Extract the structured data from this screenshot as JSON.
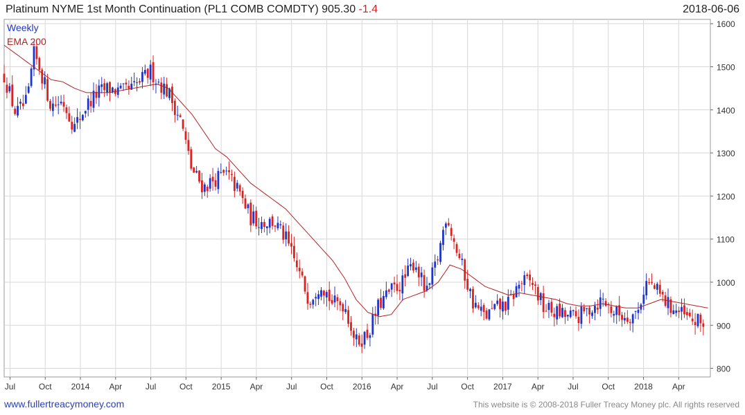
{
  "header": {
    "title": "Platinum NYME 1st Month Continuation (PL1 COMB COMDTY)",
    "last_price": "905.30",
    "change": "-1.4",
    "date": "2018-06-06"
  },
  "footer": {
    "site": "www.fullertreacymoney.com",
    "copyright": "This website is © 2008-2018 Fuller Treacy Money plc. All rights reserved"
  },
  "colors": {
    "up": "#1f35c8",
    "down": "#dd2020",
    "ema": "#b22222",
    "grid": "#d8d8d8"
  },
  "chart_data": {
    "type": "candlestick",
    "legend": [
      "Weekly",
      "EMA 200"
    ],
    "y_axis": {
      "min": 780,
      "max": 1610,
      "ticks": [
        800,
        900,
        1000,
        1100,
        1200,
        1300,
        1400,
        1500,
        1600
      ],
      "side": "right"
    },
    "x_ticks": [
      {
        "label": "Jul",
        "m": 0.5
      },
      {
        "label": "Oct",
        "m": 3.5
      },
      {
        "label": "2014",
        "m": 6.5
      },
      {
        "label": "Apr",
        "m": 9.5
      },
      {
        "label": "Jul",
        "m": 12.5
      },
      {
        "label": "Oct",
        "m": 15.5
      },
      {
        "label": "2015",
        "m": 18.5
      },
      {
        "label": "Apr",
        "m": 21.5
      },
      {
        "label": "Jul",
        "m": 24.5
      },
      {
        "label": "Oct",
        "m": 27.5
      },
      {
        "label": "2016",
        "m": 30.5
      },
      {
        "label": "Apr",
        "m": 33.5
      },
      {
        "label": "Jul",
        "m": 36.5
      },
      {
        "label": "Oct",
        "m": 39.5
      },
      {
        "label": "2017",
        "m": 42.5
      },
      {
        "label": "Apr",
        "m": 45.5
      },
      {
        "label": "Jul",
        "m": 48.5
      },
      {
        "label": "Oct",
        "m": 51.5
      },
      {
        "label": "2018",
        "m": 54.5
      },
      {
        "label": "Apr",
        "m": 57.5
      }
    ],
    "x_range_months": [
      0,
      60.2
    ],
    "weekly_close_anchors": [
      [
        0,
        1480
      ],
      [
        1,
        1390
      ],
      [
        2,
        1420
      ],
      [
        2.5,
        1530
      ],
      [
        3,
        1500
      ],
      [
        4,
        1410
      ],
      [
        5,
        1420
      ],
      [
        6,
        1360
      ],
      [
        7,
        1410
      ],
      [
        8,
        1440
      ],
      [
        9,
        1450
      ],
      [
        10,
        1440
      ],
      [
        11,
        1450
      ],
      [
        12.5,
        1490
      ],
      [
        13,
        1470
      ],
      [
        14,
        1440
      ],
      [
        15,
        1380
      ],
      [
        16,
        1260
      ],
      [
        17,
        1220
      ],
      [
        18,
        1240
      ],
      [
        19,
        1250
      ],
      [
        20,
        1210
      ],
      [
        21,
        1150
      ],
      [
        22,
        1140
      ],
      [
        23,
        1140
      ],
      [
        24,
        1100
      ],
      [
        25,
        1030
      ],
      [
        26,
        960
      ],
      [
        27,
        1000
      ],
      [
        28,
        950
      ],
      [
        29,
        950
      ],
      [
        30,
        860
      ],
      [
        31,
        880
      ],
      [
        32,
        950
      ],
      [
        33,
        980
      ],
      [
        34,
        1000
      ],
      [
        35,
        1050
      ],
      [
        36,
        970
      ],
      [
        37,
        1060
      ],
      [
        37.7,
        1160
      ],
      [
        38.5,
        1080
      ],
      [
        39,
        1040
      ],
      [
        40,
        950
      ],
      [
        41,
        920
      ],
      [
        42,
        940
      ],
      [
        43,
        950
      ],
      [
        44,
        1000
      ],
      [
        45,
        1000
      ],
      [
        46,
        940
      ],
      [
        47,
        930
      ],
      [
        48,
        920
      ],
      [
        49,
        920
      ],
      [
        50,
        940
      ],
      [
        51,
        960
      ],
      [
        52,
        930
      ],
      [
        53,
        920
      ],
      [
        54,
        930
      ],
      [
        54.7,
        1000
      ],
      [
        55.3,
        990
      ],
      [
        56.5,
        950
      ],
      [
        57.5,
        930
      ],
      [
        58.5,
        910
      ],
      [
        59.6,
        905
      ]
    ],
    "ema200_anchors": [
      [
        0,
        1550
      ],
      [
        1,
        1530
      ],
      [
        2,
        1510
      ],
      [
        3,
        1490
      ],
      [
        4,
        1470
      ],
      [
        5,
        1465
      ],
      [
        6,
        1450
      ],
      [
        7,
        1440
      ],
      [
        8,
        1440
      ],
      [
        9,
        1440
      ],
      [
        10,
        1445
      ],
      [
        11,
        1450
      ],
      [
        12,
        1455
      ],
      [
        13,
        1460
      ],
      [
        14,
        1450
      ],
      [
        15,
        1420
      ],
      [
        16,
        1390
      ],
      [
        17,
        1350
      ],
      [
        18,
        1310
      ],
      [
        19,
        1290
      ],
      [
        20,
        1260
      ],
      [
        21,
        1230
      ],
      [
        22,
        1210
      ],
      [
        23,
        1190
      ],
      [
        24,
        1170
      ],
      [
        25,
        1140
      ],
      [
        26,
        1110
      ],
      [
        27,
        1080
      ],
      [
        28,
        1050
      ],
      [
        29,
        1010
      ],
      [
        30,
        960
      ],
      [
        31,
        930
      ],
      [
        32,
        920
      ],
      [
        33,
        925
      ],
      [
        34,
        960
      ],
      [
        35,
        970
      ],
      [
        36,
        980
      ],
      [
        37,
        1000
      ],
      [
        38,
        1040
      ],
      [
        39,
        1030
      ],
      [
        40,
        1010
      ],
      [
        41,
        990
      ],
      [
        42,
        980
      ],
      [
        43,
        970
      ],
      [
        44,
        975
      ],
      [
        45,
        970
      ],
      [
        46,
        965
      ],
      [
        47,
        960
      ],
      [
        48,
        950
      ],
      [
        49,
        945
      ],
      [
        50,
        945
      ],
      [
        51,
        950
      ],
      [
        52,
        945
      ],
      [
        53,
        940
      ],
      [
        54,
        940
      ],
      [
        55,
        950
      ],
      [
        56,
        960
      ],
      [
        57,
        955
      ],
      [
        58,
        950
      ],
      [
        59,
        945
      ],
      [
        60,
        940
      ]
    ]
  }
}
